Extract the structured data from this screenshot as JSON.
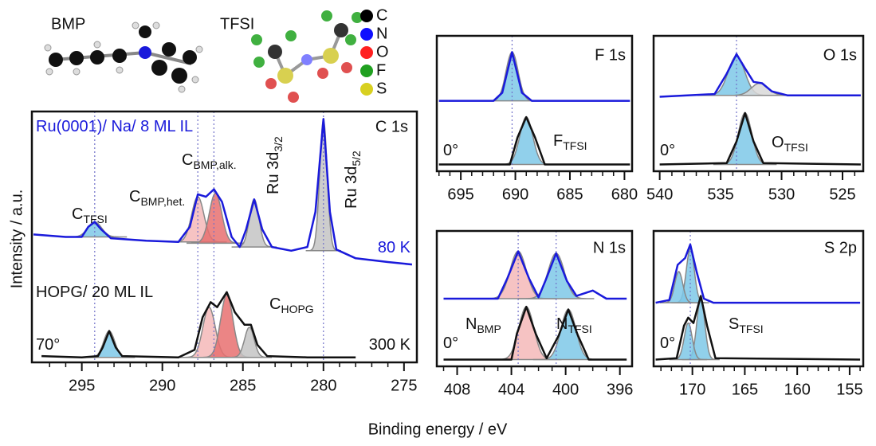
{
  "figure": {
    "x_label": "Binding energy / eV",
    "y_label": "Intensity / a.u.",
    "molecules": [
      "BMP",
      "TFSI"
    ],
    "element_legend": [
      {
        "name": "C",
        "color": "#000000"
      },
      {
        "name": "N",
        "color": "#1010ff"
      },
      {
        "name": "O",
        "color": "#ff2020"
      },
      {
        "name": "F",
        "color": "#20a020"
      },
      {
        "name": "S",
        "color": "#d8d020"
      }
    ]
  },
  "chart_data": [
    {
      "type": "line",
      "title": "C 1s",
      "xlim": [
        298.1,
        274.2
      ],
      "ylim": [
        0,
        10
      ],
      "xticks": [
        295,
        290,
        285,
        280,
        275
      ],
      "xminorticks": [
        297,
        296,
        294,
        293,
        292,
        291,
        289,
        288,
        287,
        286,
        284,
        283,
        282,
        281,
        279,
        278,
        277,
        276
      ],
      "reference_lines": [
        294.2,
        287.8,
        286.8,
        280
      ],
      "components": [
        {
          "color": "#7ec8e8",
          "center": 294.2,
          "height": 0.6,
          "fwhm": 1.0,
          "base": 5.0
        },
        {
          "color": "#f4b8b8",
          "center": 287.8,
          "height": 1.8,
          "fwhm": 0.9,
          "base": 4.8
        },
        {
          "color": "#e87070",
          "center": 286.7,
          "height": 2.0,
          "fwhm": 0.9,
          "base": 4.75
        },
        {
          "color": "#c4c4c4",
          "center": 284.3,
          "height": 1.9,
          "fwhm": 0.7,
          "base": 4.6
        },
        {
          "color": "#c4c4c4",
          "center": 280.0,
          "height": 5.2,
          "fwhm": 0.55,
          "base": 4.45
        },
        {
          "color": "#7ec8e8",
          "center": 293.3,
          "height": 1.05,
          "fwhm": 0.8,
          "base": 0.2
        },
        {
          "color": "#f4b8b8",
          "center": 287.1,
          "height": 2.0,
          "fwhm": 0.9,
          "base": 0.2
        },
        {
          "color": "#e87070",
          "center": 286.0,
          "height": 2.5,
          "fwhm": 0.9,
          "base": 0.2
        },
        {
          "color": "#c4c4c4",
          "center": 284.6,
          "height": 1.2,
          "fwhm": 0.7,
          "base": 0.2
        }
      ],
      "series": [
        {
          "color": "#1a1adb",
          "x": [
            298,
            296,
            295,
            294.6,
            294.2,
            293.8,
            293.2,
            291,
            289,
            288.3,
            287.8,
            287.3,
            286.8,
            286.3,
            285.7,
            285.2,
            284.8,
            284.3,
            283.8,
            283.2,
            282,
            281,
            280.5,
            280,
            279.6,
            279.2,
            278,
            276,
            274.5
          ],
          "values": [
            5.1,
            5.0,
            5.0,
            5.4,
            5.6,
            5.3,
            4.95,
            4.85,
            4.8,
            5.4,
            6.7,
            6.6,
            6.9,
            6.4,
            5.0,
            4.6,
            5.3,
            6.5,
            5.3,
            4.6,
            4.45,
            4.6,
            6.0,
            9.7,
            6.0,
            4.5,
            4.15,
            4.0,
            3.9
          ]
        },
        {
          "color": "#111111",
          "x": [
            297.5,
            295,
            294,
            293.7,
            293.3,
            292.9,
            292.5,
            289,
            288,
            287.5,
            287,
            286.6,
            286,
            285.5,
            284.9,
            284.5,
            284.1,
            283.5,
            281,
            278
          ],
          "values": [
            0.25,
            0.2,
            0.25,
            0.6,
            1.25,
            0.6,
            0.25,
            0.2,
            0.5,
            1.8,
            2.4,
            2.2,
            2.8,
            2.0,
            1.5,
            1.5,
            0.7,
            0.25,
            0.2,
            0.2
          ]
        }
      ],
      "annotations": [
        {
          "text": "Ru(0001)/ Na/ 8 ML IL",
          "color": "#1a1adb"
        },
        {
          "text": "80 K",
          "color": "#1a1adb"
        },
        {
          "text": "HOPG/ 20 ML IL"
        },
        {
          "text": "70°"
        },
        {
          "text": "300 K"
        },
        {
          "text": "C",
          "sub": "TFSI"
        },
        {
          "text": "C",
          "sub": "BMP,het."
        },
        {
          "text": "C",
          "sub": "BMP,alk."
        },
        {
          "text": "Ru 3d",
          "sub": "3/2"
        },
        {
          "text": "Ru 3d",
          "sub": "5/2"
        },
        {
          "text": "C",
          "sub": "HOPG"
        }
      ]
    },
    {
      "type": "line",
      "title": "F 1s",
      "xlim": [
        697.2,
        679.3
      ],
      "ylim": [
        0,
        10
      ],
      "xticks": [
        695,
        690,
        685,
        680
      ],
      "xminorticks": [
        697,
        696,
        694,
        693,
        692,
        691,
        689,
        688,
        687,
        686,
        684,
        683,
        682,
        681
      ],
      "reference_lines": [
        690.3
      ],
      "components": [
        {
          "color": "#7ec8e8",
          "center": 690.3,
          "height": 3.6,
          "fwhm": 1.3,
          "base": 5.2
        },
        {
          "color": "#7ec8e8",
          "center": 689.0,
          "height": 3.5,
          "fwhm": 1.4,
          "base": 0.5
        }
      ],
      "series": [
        {
          "color": "#1a1adb",
          "x": [
            697,
            692,
            691.2,
            690.3,
            689.4,
            688.5,
            679.5
          ],
          "values": [
            5.2,
            5.2,
            5.8,
            8.8,
            5.8,
            5.2,
            5.2
          ]
        },
        {
          "color": "#111111",
          "x": [
            697,
            690.5,
            689.8,
            689,
            688.2,
            687.3,
            679.5
          ],
          "values": [
            0.5,
            0.5,
            2.5,
            4.0,
            2.5,
            0.5,
            0.5
          ]
        }
      ],
      "annotations": [
        {
          "text": "0°"
        },
        {
          "text": "F",
          "sub": "TFSI"
        }
      ]
    },
    {
      "type": "line",
      "title": "O 1s",
      "xlim": [
        540.5,
        523.3
      ],
      "ylim": [
        0,
        10
      ],
      "xticks": [
        540,
        535,
        530,
        525
      ],
      "xminorticks": [
        539,
        538,
        537,
        536,
        534,
        533,
        532,
        531,
        529,
        528,
        527,
        526,
        524
      ],
      "reference_lines": [
        533.7
      ],
      "components": [
        {
          "color": "#7ec8e8",
          "center": 533.7,
          "height": 2.9,
          "fwhm": 1.6,
          "base": 5.6
        },
        {
          "color": "#d8d8d8",
          "center": 531.8,
          "height": 0.9,
          "fwhm": 1.6,
          "base": 5.6
        },
        {
          "color": "#7ec8e8",
          "center": 533.0,
          "height": 3.8,
          "fwhm": 1.3,
          "base": 0.5
        }
      ],
      "series": [
        {
          "color": "#1a1adb",
          "x": [
            540,
            535.5,
            534.5,
            533.7,
            533,
            532.3,
            531.6,
            530.8,
            529.5,
            523.5
          ],
          "values": [
            5.5,
            5.7,
            7.2,
            8.65,
            7.6,
            6.6,
            6.5,
            5.9,
            5.6,
            5.6
          ]
        },
        {
          "color": "#111111",
          "x": [
            540,
            534.5,
            533.7,
            533,
            532.3,
            531.5,
            523.5
          ],
          "values": [
            0.5,
            0.6,
            2.2,
            4.3,
            2.2,
            0.6,
            0.5
          ]
        }
      ],
      "annotations": [
        {
          "text": "0°"
        },
        {
          "text": "O",
          "sub": "TFSI"
        }
      ]
    },
    {
      "type": "line",
      "title": "N 1s",
      "xlim": [
        409.5,
        395.1
      ],
      "ylim": [
        0,
        10
      ],
      "xticks": [
        408,
        404,
        400,
        396
      ],
      "xminorticks": [
        409,
        407,
        406,
        405,
        403,
        402,
        401,
        399,
        398,
        397
      ],
      "reference_lines": [
        403.5,
        400.7
      ],
      "components": [
        {
          "color": "#f4b8b8",
          "center": 403.5,
          "height": 3.5,
          "fwhm": 1.4,
          "base": 5.0
        },
        {
          "color": "#7ec8e8",
          "center": 400.7,
          "height": 3.35,
          "fwhm": 1.4,
          "base": 5.0
        },
        {
          "color": "#f4b8b8",
          "center": 402.9,
          "height": 3.9,
          "fwhm": 1.3,
          "base": 0.5
        },
        {
          "color": "#7ec8e8",
          "center": 399.8,
          "height": 3.7,
          "fwhm": 1.3,
          "base": 0.5
        }
      ],
      "series": [
        {
          "color": "#1a1adb",
          "x": [
            409,
            405,
            404.3,
            403.5,
            402.7,
            402,
            401.5,
            400.7,
            399.9,
            399.2,
            398,
            397,
            395.5
          ],
          "values": [
            5.0,
            5.0,
            6.5,
            8.5,
            6.5,
            5.1,
            6.3,
            8.35,
            6.3,
            5.2,
            5.6,
            5.0,
            5.0
          ]
        },
        {
          "color": "#111111",
          "x": [
            409,
            404,
            403.6,
            402.9,
            402.2,
            401.4,
            400.5,
            399.8,
            399.1,
            398.3,
            395.5
          ],
          "values": [
            0.5,
            0.5,
            2.4,
            4.4,
            2.4,
            0.6,
            2.3,
            4.2,
            2.3,
            0.5,
            0.5
          ]
        }
      ],
      "annotations": [
        {
          "text": "0°"
        },
        {
          "text": "N",
          "sub": "BMP"
        },
        {
          "text": "N",
          "sub": "TFSI"
        }
      ]
    },
    {
      "type": "line",
      "title": "S 2p",
      "xlim": [
        173.7,
        153.7
      ],
      "ylim": [
        0,
        10
      ],
      "xticks": [
        170,
        165,
        160,
        155
      ],
      "xminorticks": [
        173,
        172,
        171,
        169,
        168,
        167,
        166,
        164,
        163,
        162,
        161,
        159,
        158,
        157,
        156,
        154
      ],
      "reference_lines": [
        170.2
      ],
      "components": [
        {
          "color": "#7ec8e8",
          "center": 170.2,
          "height": 4.0,
          "fwhm": 0.9,
          "base": 4.7
        },
        {
          "color": "#7ec8e8",
          "center": 171.3,
          "height": 2.3,
          "fwhm": 0.9,
          "base": 4.7
        },
        {
          "color": "#7ec8e8",
          "center": 169.2,
          "height": 4.5,
          "fwhm": 0.9,
          "base": 0.5
        },
        {
          "color": "#7ec8e8",
          "center": 170.4,
          "height": 2.7,
          "fwhm": 0.9,
          "base": 0.5
        }
      ],
      "series": [
        {
          "color": "#1a1adb",
          "x": [
            173.5,
            172.2,
            171.4,
            170.7,
            170.2,
            169.6,
            168.9,
            168,
            154
          ],
          "values": [
            4.7,
            4.9,
            7.5,
            8.0,
            9.0,
            7.0,
            5.0,
            4.7,
            4.7
          ]
        },
        {
          "color": "#111111",
          "x": [
            173.5,
            171.5,
            170.8,
            170.4,
            169.9,
            169.2,
            168.6,
            167.8,
            154
          ],
          "values": [
            0.5,
            0.6,
            3.0,
            3.6,
            3.2,
            5.2,
            3.0,
            0.6,
            0.5
          ]
        }
      ],
      "annotations": [
        {
          "text": "0°"
        },
        {
          "text": "S",
          "sub": "TFSI"
        }
      ]
    }
  ]
}
